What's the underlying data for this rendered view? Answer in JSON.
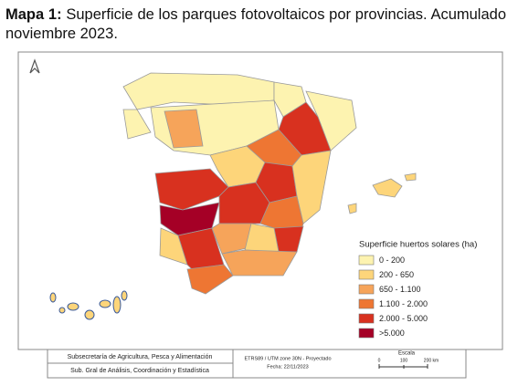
{
  "title": {
    "label": "Mapa 1:",
    "text": "Superficie de los parques fotovoltaicos por provincias. Acumulado noviembre 2023."
  },
  "legend": {
    "title": "Superficie huertos solares (ha)",
    "items": [
      {
        "label": "0 - 200",
        "color": "#fdf3b0"
      },
      {
        "label": "200 - 650",
        "color": "#fdd57a"
      },
      {
        "label": "650 - 1.100",
        "color": "#f6a45a"
      },
      {
        "label": "1.100 - 2.000",
        "color": "#ee7633"
      },
      {
        "label": "2.000 - 5.000",
        "color": "#d8311f"
      },
      {
        "label": ">5.000",
        "color": "#a50026"
      }
    ]
  },
  "footer": {
    "organization": "Subsecretaría de Agricultura, Pesca y Alimentación",
    "department": "Sub. Gral de Análisis, Coordinación y Estadística",
    "projection": "ETRS89 / UTM zone 30N - Proyectado",
    "date": "Fecha: 22/11/2023",
    "scale": {
      "title": "Escala",
      "labels": [
        "0",
        "100",
        "200 km"
      ]
    }
  }
}
